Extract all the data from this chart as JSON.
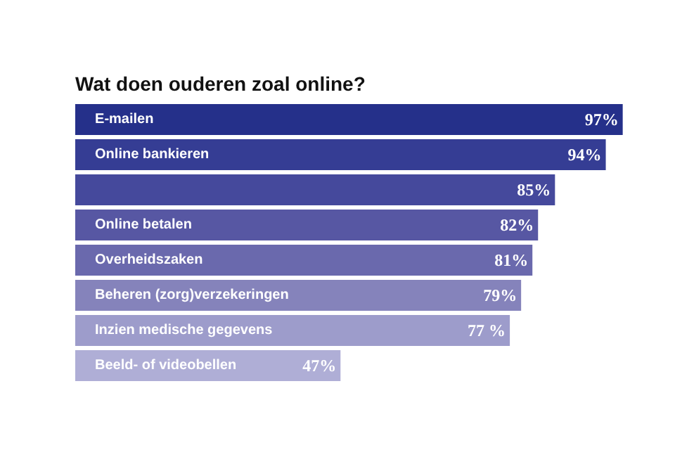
{
  "chart_data": {
    "type": "bar",
    "orientation": "horizontal",
    "title": "Wat doen ouderen zoal online?",
    "categories": [
      "E-mailen",
      "Online bankieren",
      null,
      "Online betalen",
      "Overheidszaken",
      "Beheren (zorg)verzekeringen",
      "Inzien medische gegevens",
      "Beeld- of videobellen"
    ],
    "values": [
      97,
      94,
      85,
      82,
      81,
      79,
      77,
      47
    ],
    "value_labels": [
      "97%",
      "94%",
      "85%",
      "82%",
      "81%",
      "79%",
      "77 %",
      "47%"
    ],
    "colors": [
      "#25308a",
      "#353d94",
      "#45499c",
      "#5757a3",
      "#6a69ad",
      "#8583bb",
      "#9d9ccb",
      "#afaed6"
    ],
    "grid": false
  }
}
